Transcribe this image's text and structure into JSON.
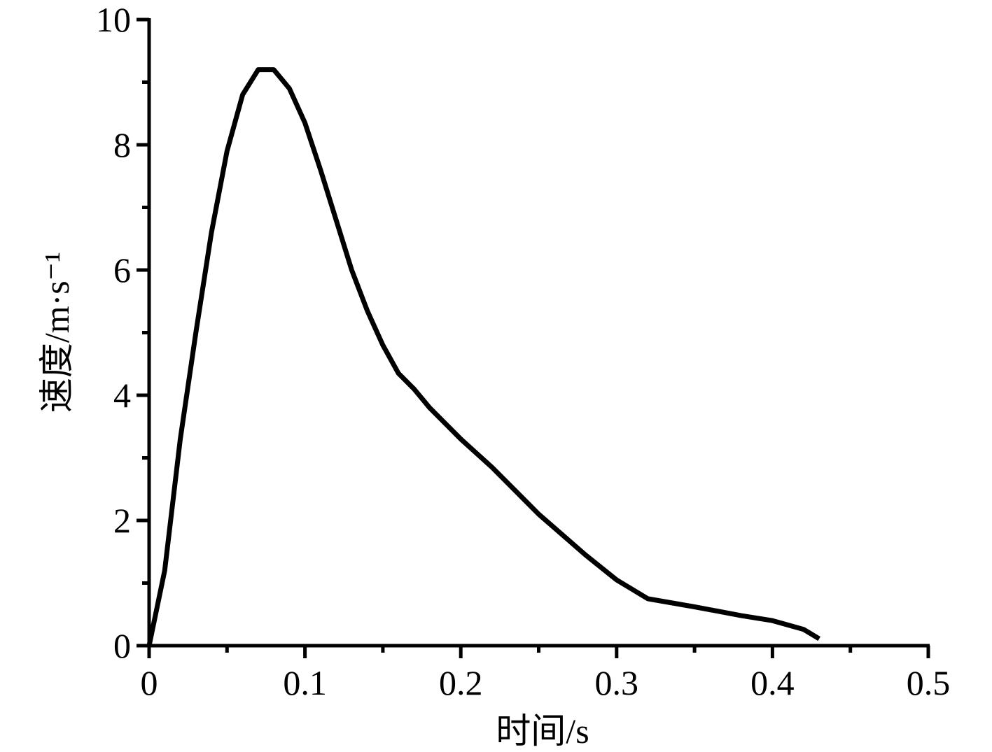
{
  "chart_data": {
    "type": "line",
    "xlabel": "时间/s",
    "ylabel": "速度/m·s⁻¹",
    "series": [
      {
        "color": "#000000",
        "x": [
          0,
          0.01,
          0.02,
          0.03,
          0.04,
          0.05,
          0.06,
          0.07,
          0.08,
          0.09,
          0.1,
          0.11,
          0.12,
          0.13,
          0.14,
          0.15,
          0.16,
          0.17,
          0.18,
          0.2,
          0.22,
          0.25,
          0.28,
          0.3,
          0.32,
          0.35,
          0.38,
          0.4,
          0.42,
          0.43
        ],
        "values": [
          0,
          1.2,
          3.3,
          5.0,
          6.6,
          7.9,
          8.8,
          9.2,
          9.2,
          8.9,
          8.35,
          7.6,
          6.8,
          6.0,
          5.35,
          4.8,
          4.35,
          4.1,
          3.8,
          3.3,
          2.85,
          2.1,
          1.45,
          1.05,
          0.75,
          0.62,
          0.48,
          0.4,
          0.26,
          0.11
        ]
      }
    ],
    "xlim": [
      0,
      0.5
    ],
    "xticks": [
      0,
      0.1,
      0.2,
      0.3,
      0.4,
      0.5
    ],
    "xminorticks": [
      0.05,
      0.15,
      0.25,
      0.35,
      0.45
    ],
    "ylim": [
      0,
      10
    ],
    "yticks": [
      0,
      2,
      4,
      6,
      8,
      10
    ],
    "yminorticks": [
      1,
      3,
      5,
      7,
      9
    ]
  }
}
